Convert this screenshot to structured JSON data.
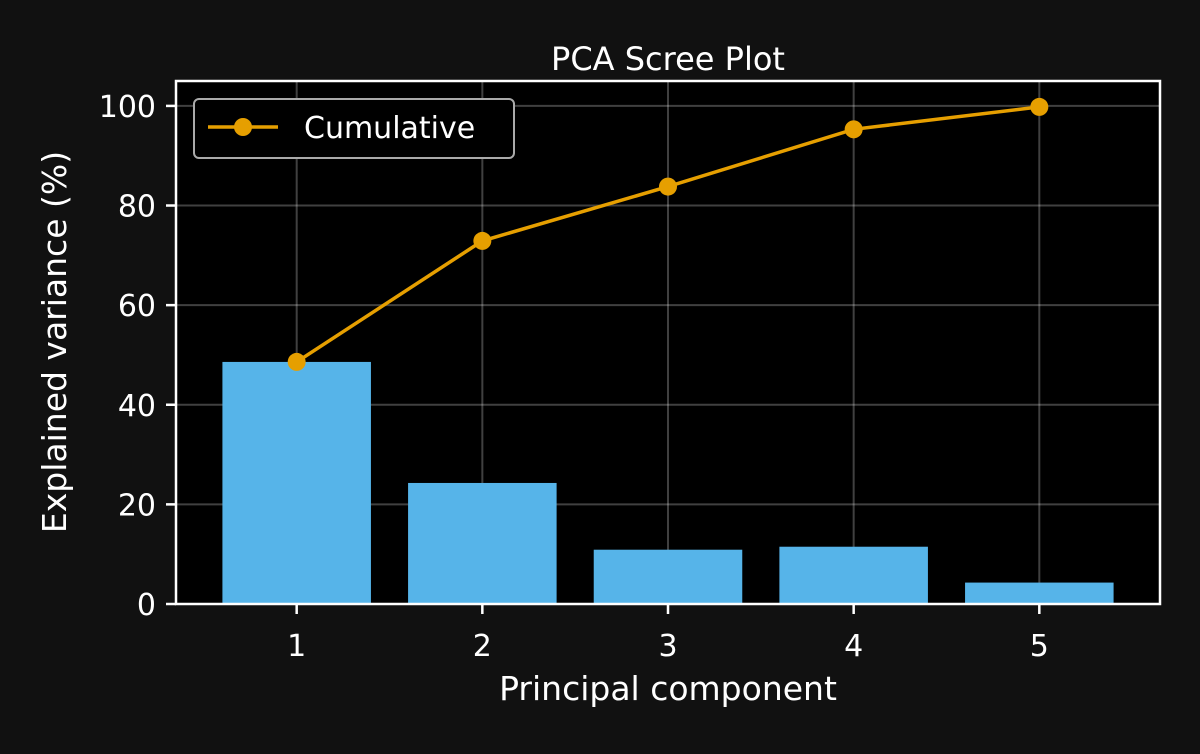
{
  "colors": {
    "page_background": "#111111",
    "plot_background": "#000000",
    "bar": "#56B4E9",
    "cumulative_line": "#E69F00",
    "text": "#ffffff",
    "grid": "#ffffff"
  },
  "chart_data": {
    "type": "bar",
    "title": "PCA Scree Plot",
    "xlabel": "Principal component",
    "ylabel": "Explained variance (%)",
    "categories": [
      "1",
      "2",
      "3",
      "4",
      "5"
    ],
    "xlim": [
      0.35,
      5.65
    ],
    "ylim": [
      0,
      105
    ],
    "yticks": [
      0,
      20,
      40,
      60,
      80,
      100
    ],
    "grid": true,
    "legend": {
      "placement": "top-left",
      "entries": [
        "Cumulative"
      ]
    },
    "series": [
      {
        "type": "bar",
        "values": [
          48.6,
          24.3,
          10.9,
          11.5,
          4.3
        ]
      },
      {
        "type": "line",
        "name": "Cumulative",
        "markers": "circle",
        "values": [
          48.6,
          72.9,
          83.8,
          95.3,
          99.8
        ]
      }
    ]
  }
}
